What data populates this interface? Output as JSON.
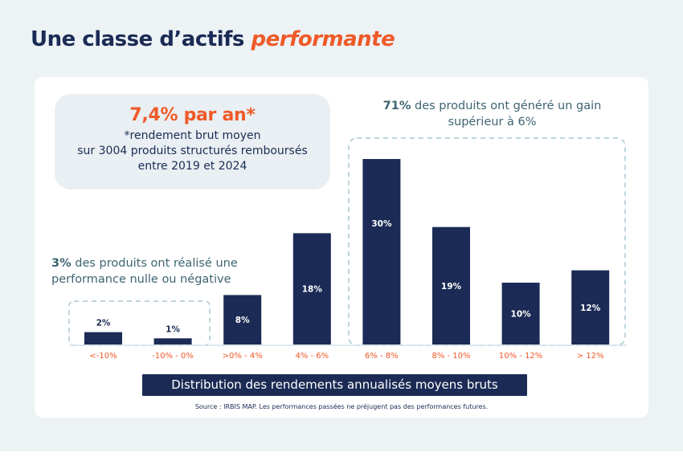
{
  "page": {
    "title_main": "Une classe d’actifs ",
    "title_accent": "performante"
  },
  "stat_box": {
    "headline": "7,4% par an*",
    "line1": "*rendement brut moyen",
    "line2": "sur 3004 produits structurés remboursés",
    "line3": "entre 2019 et 2024"
  },
  "notes": {
    "high": {
      "bold": "71%",
      "text": " des produits ont généré un gain supérieur à 6%"
    },
    "low": {
      "bold": "3%",
      "text": " des produits ont réalisé une performance nulle ou négative"
    }
  },
  "banner": "Distribution des rendements annualisés moyens bruts",
  "source": "Source : IRBIS MAP. Les performances passées ne préjugent pas des performances futures.",
  "colors": {
    "bar": "#1b2b55",
    "category_label": "#ef5a28",
    "accent": "#ef5a28",
    "dashed_box": "#a9c6d3",
    "baseline": "#d6e2e8"
  },
  "chart_data": {
    "type": "bar",
    "title": "Distribution des rendements annualisés moyens bruts",
    "xlabel": "",
    "ylabel": "",
    "categories": [
      "<-10%",
      "-10% - 0%",
      ">0% - 4%",
      "4% - 6%",
      "6% - 8%",
      "8% - 10%",
      "10% - 12%",
      "> 12%"
    ],
    "values": [
      2,
      1,
      8,
      18,
      30,
      19,
      10,
      12
    ],
    "data_labels": [
      "2%",
      "1%",
      "8%",
      "18%",
      "30%",
      "19%",
      "10%",
      "12%"
    ],
    "unit": "%",
    "ylim": [
      0,
      30
    ],
    "grid": false,
    "legend": "none",
    "groups": [
      {
        "name": "nulle ou négative",
        "categories": [
          "<-10%",
          "-10% - 0%"
        ],
        "total": "3%"
      },
      {
        "name": "gain supérieur à 6%",
        "categories": [
          "6% - 8%",
          "8% - 10%",
          "10% - 12%",
          "> 12%"
        ],
        "total": "71%"
      }
    ]
  }
}
